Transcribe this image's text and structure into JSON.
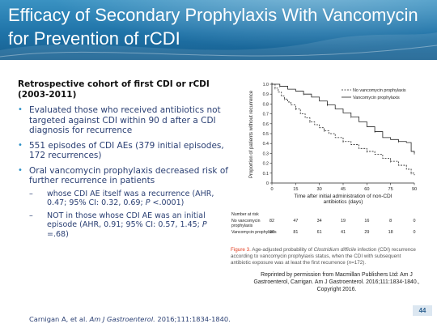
{
  "title": "Efficacy of Secondary Prophylaxis With Vancomycin for Prevention of rCDI",
  "content": {
    "heading": "Retrospective cohort of first CDI or rCDI (2003-2011)",
    "bullets": [
      {
        "text": "Evaluated those who received antibiotics not targeted against CDI within 90 d after a CDI diagnosis for recurrence"
      },
      {
        "text": "551 episodes of CDI AEs (379 initial episodes, 172 recurrences)"
      },
      {
        "text": "Oral vancomycin prophylaxis decreased risk of further recurrence in patients",
        "sub": [
          {
            "prefix": "whose CDI AE itself was a recurrence (AHR, 0.47; 95% CI: 0.32, 0.69; ",
            "p_label": "P",
            "suffix": " <.0001)"
          },
          {
            "prefix": "NOT in those whose CDI AE was an initial episode (AHR, 0.91; 95% CI: 0.57, 1.45; ",
            "p_label": "P",
            "suffix": " =.68)"
          }
        ]
      }
    ]
  },
  "figure": {
    "caption_label": "Figure 3.",
    "caption_pre": " Age-adjusted probability of ",
    "caption_italic": "Clostridium difficile",
    "caption_post": " infection (CDI) recurrence according to vancomycin prophylaxis status, when the CDI with subsequent antibiotic exposure was at least the first recurrence (",
    "caption_n": "n",
    "caption_end": "=172).",
    "reprint": "Reprinted by permission from Macmillan Publishers Ltd: Am J Gastroenterol, Carrigan. Am J Gastroenterol. 2016;111:1834-1840., Copyright 2016.",
    "risk_table": {
      "title": "Number at risk",
      "rows": [
        {
          "label": "No vancomycin prophylaxis",
          "values": [
            "82",
            "47",
            "34",
            "19",
            "16",
            "8",
            "0"
          ]
        },
        {
          "label": "Vancomycin prophylaxis",
          "values": [
            "90",
            "81",
            "61",
            "41",
            "29",
            "18",
            "0"
          ]
        }
      ]
    }
  },
  "chart_data": {
    "type": "line",
    "title": "",
    "xlabel": "Time after initial administration of non-CDI antibiotics (days)",
    "ylabel": "Proportion of patients without recurrence",
    "xlim": [
      0,
      90
    ],
    "ylim": [
      0,
      1.0
    ],
    "xticks": [
      "0",
      "15",
      "30",
      "45",
      "60",
      "75",
      "90"
    ],
    "yticks": [
      "0",
      "0.1",
      "0.2",
      "0.3",
      "0.4",
      "0.5",
      "0.6",
      "0.7",
      "0.8",
      "0.9",
      "1.0"
    ],
    "legend_position": "top-right",
    "series": [
      {
        "name": "No vancomycin prophylaxis",
        "style": "dashed",
        "x": [
          0,
          2,
          4,
          6,
          8,
          10,
          12,
          15,
          18,
          21,
          24,
          27,
          30,
          33,
          36,
          40,
          45,
          50,
          55,
          60,
          65,
          70,
          75,
          80,
          85,
          88,
          90
        ],
        "y": [
          1.0,
          0.96,
          0.92,
          0.88,
          0.85,
          0.82,
          0.79,
          0.75,
          0.7,
          0.66,
          0.62,
          0.59,
          0.56,
          0.53,
          0.5,
          0.46,
          0.42,
          0.39,
          0.35,
          0.32,
          0.29,
          0.25,
          0.22,
          0.18,
          0.14,
          0.1,
          0.08
        ]
      },
      {
        "name": "Vancomycin prophylaxis",
        "style": "solid",
        "x": [
          0,
          5,
          10,
          15,
          20,
          25,
          30,
          35,
          40,
          45,
          50,
          55,
          60,
          65,
          70,
          75,
          80,
          85,
          88,
          90
        ],
        "y": [
          1.0,
          0.98,
          0.95,
          0.93,
          0.9,
          0.87,
          0.83,
          0.79,
          0.75,
          0.71,
          0.67,
          0.62,
          0.57,
          0.52,
          0.46,
          0.44,
          0.42,
          0.41,
          0.32,
          0.3
        ]
      }
    ]
  },
  "citation": {
    "prefix": "Carnigan A, et al. ",
    "journal": "Am J Gastroenterol.",
    "suffix": " 2016;111:1834-1840."
  },
  "page_number": "44"
}
